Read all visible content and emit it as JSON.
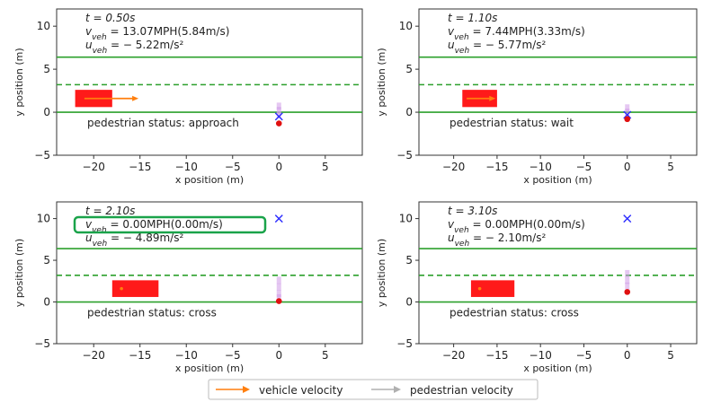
{
  "colors": {
    "lane": "#2ca02c",
    "vehicle": "#ff1a1a",
    "vehicle_velocity": "#ff7f0e",
    "pedestrian_marker": "#e01010",
    "pedestrian_goal": "#2b2bff",
    "pedestrian_trail": "#d09be8",
    "highlight_box": "#1aa34a"
  },
  "legend": {
    "vehicle_velocity": "vehicle velocity",
    "pedestrian_velocity": "pedestrian velocity"
  },
  "chart_data": [
    {
      "type": "scatter",
      "xlabel": "x position (m)",
      "ylabel": "y position (m)",
      "xlim": [
        -24,
        9
      ],
      "ylim": [
        -5,
        12
      ],
      "xticks": [
        -20,
        -15,
        -10,
        -5,
        0,
        5
      ],
      "yticks": [
        -5,
        0,
        5,
        10
      ],
      "lanes": {
        "solid": [
          0,
          6.4
        ],
        "dashed": 3.2
      },
      "annotation": {
        "t": "t = 0.50s",
        "v": "13.07MPH(5.84m/s)",
        "u": "− 5.22m/s²"
      },
      "status": "pedestrian status: approach",
      "vehicle": {
        "x0": -22,
        "x1": -18,
        "y0": 0.6,
        "y1": 2.6
      },
      "vehicle_velocity_arrow": {
        "x0": -21,
        "y": 1.6,
        "dx": 5.84
      },
      "pedestrian": {
        "x": 0,
        "y": -1.3
      },
      "pedestrian_goal": {
        "x": 0,
        "y": -0.5
      },
      "pedestrian_trail": [
        [
          0,
          0.7
        ],
        [
          0,
          0.2
        ],
        [
          0,
          -0.3
        ]
      ],
      "highlight_v": false
    },
    {
      "type": "scatter",
      "xlabel": "x position (m)",
      "ylabel": "y position (m)",
      "xlim": [
        -24,
        8
      ],
      "ylim": [
        -5,
        12
      ],
      "xticks": [
        -20,
        -15,
        -10,
        -5,
        0,
        5
      ],
      "yticks": [
        -5,
        0,
        5,
        10
      ],
      "lanes": {
        "solid": [
          0,
          6.4
        ],
        "dashed": 3.2
      },
      "annotation": {
        "t": "t = 1.10s",
        "v": "7.44MPH(3.33m/s)",
        "u": "− 5.77m/s²"
      },
      "status": "pedestrian status: wait",
      "vehicle": {
        "x0": -19,
        "x1": -15,
        "y0": 0.6,
        "y1": 2.6
      },
      "vehicle_velocity_arrow": {
        "x0": -18.5,
        "y": 1.6,
        "dx": 3.33
      },
      "pedestrian": {
        "x": 0,
        "y": -0.8
      },
      "pedestrian_goal": {
        "x": 0,
        "y": -0.3
      },
      "pedestrian_trail": [
        [
          0,
          0.5
        ],
        [
          0,
          0.0
        ]
      ],
      "highlight_v": false
    },
    {
      "type": "scatter",
      "xlabel": "x position (m)",
      "ylabel": "y position (m)",
      "xlim": [
        -24,
        9
      ],
      "ylim": [
        -5,
        12
      ],
      "xticks": [
        -20,
        -15,
        -10,
        -5,
        0,
        5
      ],
      "yticks": [
        -5,
        0,
        5,
        10
      ],
      "lanes": {
        "solid": [
          0,
          6.4
        ],
        "dashed": 3.2
      },
      "annotation": {
        "t": "t = 2.10s",
        "v": "0.00MPH(0.00m/s)",
        "u": "− 4.89m/s²"
      },
      "status": "pedestrian status: cross",
      "vehicle": {
        "x0": -18,
        "x1": -13,
        "y0": 0.6,
        "y1": 2.6
      },
      "vehicle_velocity_arrow": {
        "x0": -17,
        "y": 1.6,
        "dx": 0
      },
      "pedestrian": {
        "x": 0,
        "y": 0.1
      },
      "pedestrian_goal": {
        "x": 0,
        "y": 10
      },
      "pedestrian_trail": [
        [
          0,
          2.6
        ],
        [
          0,
          1.8
        ],
        [
          0,
          1.0
        ],
        [
          0,
          0.5
        ]
      ],
      "highlight_v": true
    },
    {
      "type": "scatter",
      "xlabel": "x position (m)",
      "ylabel": "y position (m)",
      "xlim": [
        -24,
        8
      ],
      "ylim": [
        -5,
        12
      ],
      "xticks": [
        -20,
        -15,
        -10,
        -5,
        0,
        5
      ],
      "yticks": [
        -5,
        0,
        5,
        10
      ],
      "lanes": {
        "solid": [
          0,
          6.4
        ],
        "dashed": 3.2
      },
      "annotation": {
        "t": "t = 3.10s",
        "v": "0.00MPH(0.00m/s)",
        "u": "− 2.10m/s²"
      },
      "status": "pedestrian status: cross",
      "vehicle": {
        "x0": -18,
        "x1": -13,
        "y0": 0.6,
        "y1": 2.6
      },
      "vehicle_velocity_arrow": {
        "x0": -17,
        "y": 1.6,
        "dx": 0
      },
      "pedestrian": {
        "x": 0,
        "y": 1.2
      },
      "pedestrian_goal": {
        "x": 0,
        "y": 10
      },
      "pedestrian_trail": [
        [
          0,
          3.4
        ],
        [
          0,
          2.6
        ],
        [
          0,
          1.9
        ]
      ],
      "highlight_v": false
    }
  ]
}
